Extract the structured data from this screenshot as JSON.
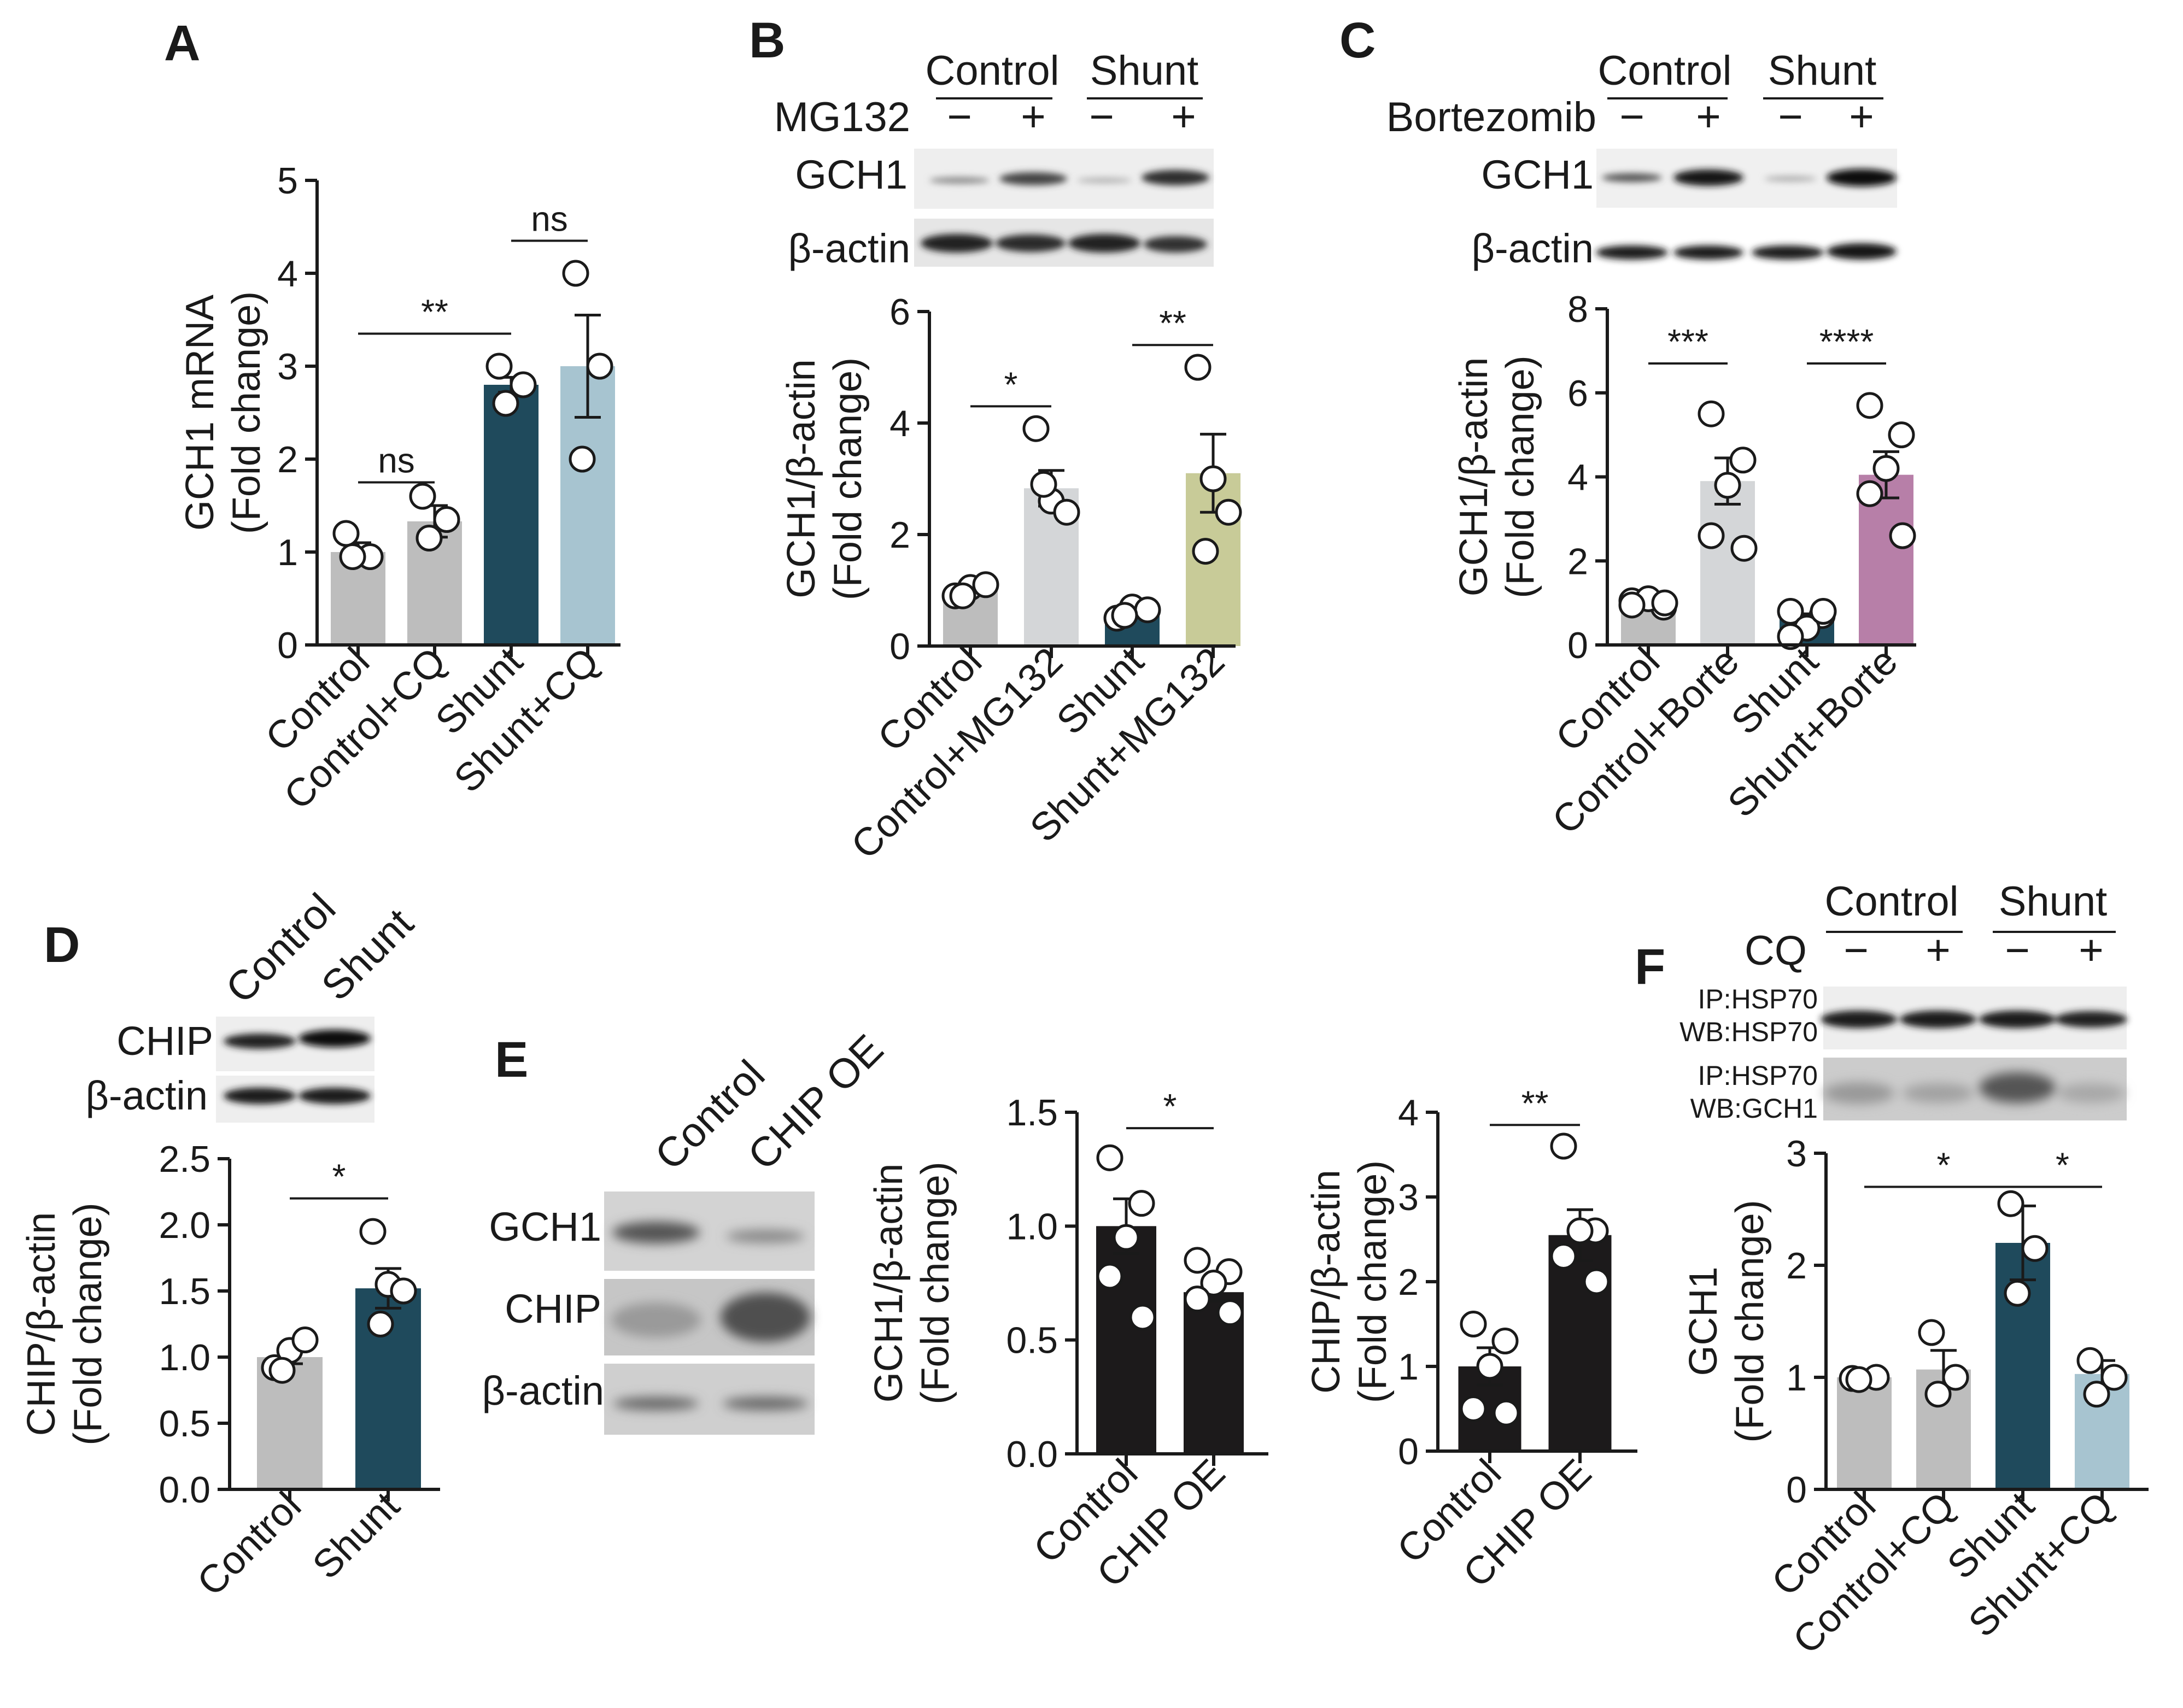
{
  "colors": {
    "grey": "#bdbdbd",
    "light_grey": "#d4d6d8",
    "navy": "#1f4a5c",
    "light_blue": "#a7c4d0",
    "olive": "#c8cb98",
    "mauve": "#b77fa8",
    "black": "#1c1a1b",
    "white": "#ffffff"
  },
  "chart_data": [
    {
      "panel": "A",
      "type": "bar",
      "title": "",
      "ylabel": [
        "GCH1 mRNA",
        "(Fold change)"
      ],
      "ylim": [
        0,
        5
      ],
      "yticks": [
        "0",
        "1",
        "2",
        "3",
        "4",
        "5"
      ],
      "categories": [
        "Control",
        "Control+CQ",
        "Shunt",
        "Shunt+CQ"
      ],
      "values": [
        1.0,
        1.33,
        2.8,
        3.0
      ],
      "sem": [
        0.1,
        0.17,
        0.08,
        0.55
      ],
      "points": [
        [
          1.2,
          0.95,
          0.95
        ],
        [
          1.6,
          1.35,
          1.15
        ],
        [
          3.0,
          2.8,
          2.6
        ],
        [
          4.0,
          3.0,
          2.0
        ]
      ],
      "colors": [
        "#bdbdbd",
        "#bdbdbd",
        "#1f4a5c",
        "#a7c4d0"
      ],
      "significance": [
        {
          "from": 0,
          "to": 1,
          "label": "ns",
          "y": 1.75
        },
        {
          "from": 0,
          "to": 2,
          "label": "**",
          "y": 3.35
        },
        {
          "from": 2,
          "to": 3,
          "label": "ns",
          "y": 4.35
        }
      ]
    },
    {
      "panel": "B",
      "type": "bar",
      "title": "",
      "ylabel": [
        "GCH1/β-actin",
        "(Fold change)"
      ],
      "ylim": [
        0,
        6
      ],
      "yticks": [
        "0",
        "2",
        "4",
        "6"
      ],
      "categories": [
        "Control",
        "Control+MG132",
        "Shunt",
        "Shunt+MG132"
      ],
      "values": [
        1.0,
        2.83,
        0.6,
        3.1
      ],
      "sem": [
        0.05,
        0.32,
        0.07,
        0.7
      ],
      "points": [
        [
          0.9,
          1.05,
          1.1,
          0.9
        ],
        [
          3.9,
          2.6,
          2.4,
          2.9
        ],
        [
          0.5,
          0.7,
          0.65,
          0.55
        ],
        [
          5.0,
          3.0,
          2.4,
          1.7
        ]
      ],
      "colors": [
        "#bdbdbd",
        "#d4d6d8",
        "#1f4a5c",
        "#c8cb98"
      ],
      "significance": [
        {
          "from": 0,
          "to": 1,
          "label": "*",
          "y": 4.3
        },
        {
          "from": 2,
          "to": 3,
          "label": "**",
          "y": 5.4
        }
      ]
    },
    {
      "panel": "C",
      "type": "bar",
      "title": "",
      "ylabel": [
        "GCH1/β-actin",
        "(Fold change)"
      ],
      "ylim": [
        0,
        8
      ],
      "yticks": [
        "0",
        "2",
        "4",
        "6",
        "8"
      ],
      "categories": [
        "Control",
        "Control+Borte",
        "Shunt",
        "Shunt+Borte"
      ],
      "values": [
        1.0,
        3.9,
        0.62,
        4.05
      ],
      "sem": [
        0.1,
        0.55,
        0.12,
        0.55
      ],
      "points": [
        [
          1.05,
          0.9,
          1.1,
          0.95,
          1.0
        ],
        [
          5.5,
          4.4,
          3.8,
          2.6,
          2.3
        ],
        [
          0.8,
          0.7,
          0.4,
          0.2,
          0.8
        ],
        [
          5.7,
          5.0,
          4.2,
          3.6,
          2.6
        ]
      ],
      "colors": [
        "#bdbdbd",
        "#d4d6d8",
        "#1f4a5c",
        "#b77fa8"
      ],
      "significance": [
        {
          "from": 0,
          "to": 1,
          "label": "***",
          "y": 6.7
        },
        {
          "from": 2,
          "to": 3,
          "label": "****",
          "y": 6.7
        }
      ]
    },
    {
      "panel": "D",
      "type": "bar",
      "title": "",
      "ylabel": [
        "CHIP/β-actin",
        "(Fold change)"
      ],
      "ylim": [
        0,
        2.5
      ],
      "yticks": [
        "0.0",
        "0.5",
        "1.0",
        "1.5",
        "2.0",
        "2.5"
      ],
      "categories": [
        "Control",
        "Shunt"
      ],
      "values": [
        1.0,
        1.52
      ],
      "sem": [
        0.05,
        0.15
      ],
      "points": [
        [
          0.92,
          1.05,
          1.13,
          0.9
        ],
        [
          1.95,
          1.55,
          1.5,
          1.25
        ]
      ],
      "colors": [
        "#bdbdbd",
        "#1f4a5c"
      ],
      "significance": [
        {
          "from": 0,
          "to": 1,
          "label": "*",
          "y": 2.2
        }
      ]
    },
    {
      "panel": "E-GCH1",
      "type": "bar",
      "title": "",
      "ylabel": [
        "GCH1/β-actin",
        "(Fold change)"
      ],
      "ylim": [
        0,
        1.5
      ],
      "yticks": [
        "0.0",
        "0.5",
        "1.0",
        "1.5"
      ],
      "categories": [
        "Control",
        "CHIP OE"
      ],
      "values": [
        1.0,
        0.71
      ],
      "sem": [
        0.12,
        0.04
      ],
      "points": [
        [
          1.3,
          1.1,
          0.95,
          0.78,
          0.6
        ],
        [
          0.85,
          0.8,
          0.75,
          0.68,
          0.62
        ]
      ],
      "colors": [
        "#1c1a1b",
        "#1c1a1b"
      ],
      "significance": [
        {
          "from": 0,
          "to": 1,
          "label": "*",
          "y": 1.43
        }
      ]
    },
    {
      "panel": "E-CHIP",
      "type": "bar",
      "title": "",
      "ylabel": [
        "CHIP/β-actin",
        "(Fold change)"
      ],
      "ylim": [
        0,
        4
      ],
      "yticks": [
        "0",
        "1",
        "2",
        "3",
        "4"
      ],
      "categories": [
        "Control",
        "CHIP OE"
      ],
      "values": [
        1.0,
        2.55
      ],
      "sem": [
        0.22,
        0.3
      ],
      "points": [
        [
          1.5,
          1.3,
          1.0,
          0.5,
          0.45
        ],
        [
          3.6,
          2.6,
          2.6,
          2.3,
          2.0
        ]
      ],
      "colors": [
        "#1c1a1b",
        "#1c1a1b"
      ],
      "significance": [
        {
          "from": 0,
          "to": 1,
          "label": "**",
          "y": 3.85
        }
      ]
    },
    {
      "panel": "F",
      "type": "bar",
      "title": "",
      "ylabel": [
        "GCH1",
        "(Fold change)"
      ],
      "ylim": [
        0,
        3
      ],
      "yticks": [
        "0",
        "1",
        "2",
        "3"
      ],
      "categories": [
        "Control",
        "Control+CQ",
        "Shunt",
        "Shunt+CQ"
      ],
      "values": [
        1.0,
        1.07,
        2.2,
        1.03
      ],
      "sem": [
        0.02,
        0.17,
        0.33,
        0.12
      ],
      "points": [
        [
          0.99,
          1.0,
          0.98
        ],
        [
          1.4,
          1.0,
          0.85
        ],
        [
          2.55,
          2.15,
          1.75
        ],
        [
          1.15,
          1.0,
          0.85
        ]
      ],
      "colors": [
        "#bdbdbd",
        "#bdbdbd",
        "#1f4a5c",
        "#a7c4d0"
      ],
      "significance": [
        {
          "from": 0,
          "to": 2,
          "label": "*",
          "y": 2.7
        },
        {
          "from": 2,
          "to": 3,
          "label": "*",
          "y": 2.7
        }
      ]
    }
  ],
  "panel_letters": {
    "a": "A",
    "b": "B",
    "c": "C",
    "d": "D",
    "e": "E",
    "f": "F"
  },
  "blots": {
    "b": {
      "group1": "Control",
      "group2": "Shunt",
      "treatment": "MG132",
      "minus": "−",
      "plus": "+",
      "row1": "GCH1",
      "row2": "β-actin"
    },
    "c": {
      "group1": "Control",
      "group2": "Shunt",
      "treatment": "Bortezomib",
      "minus": "−",
      "plus": "+",
      "row1": "GCH1",
      "row2": "β-actin"
    },
    "d": {
      "lane1": "Control",
      "lane2": "Shunt",
      "row1": "CHIP",
      "row2": "β-actin"
    },
    "e": {
      "lane1": "Control",
      "lane2": "CHIP OE",
      "row1": "GCH1",
      "row2": "CHIP",
      "row3": "β-actin"
    },
    "f": {
      "group1": "Control",
      "group2": "Shunt",
      "treatment": "CQ",
      "minus": "−",
      "plus": "+",
      "row1_ip": "IP:HSP70",
      "row1_wb": "WB:HSP70",
      "row2_ip": "IP:HSP70",
      "row2_wb": "WB:GCH1"
    }
  }
}
